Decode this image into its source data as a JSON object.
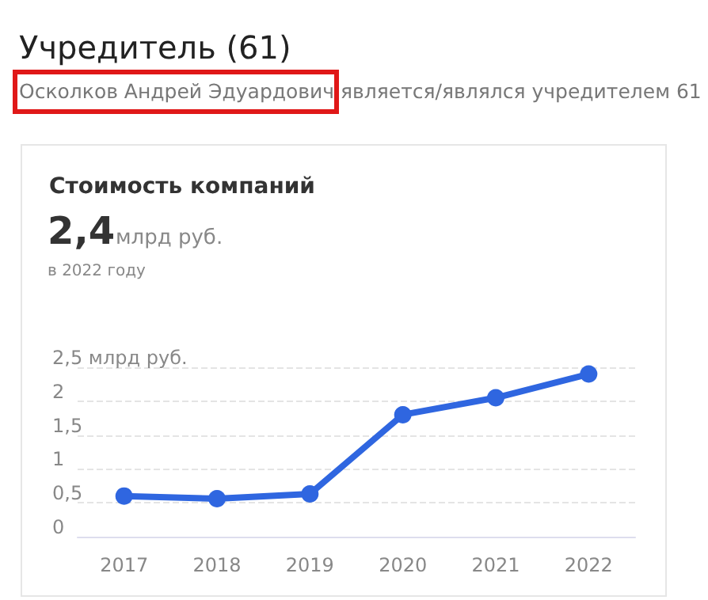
{
  "chart_data": {
    "type": "line",
    "title": "Стоимость компаний",
    "annotations": [
      "Учредитель (61)",
      "Осколков Андрей Эдуардович является/являлся учредителем 61",
      "2,4",
      "млрд руб.",
      "в 2022 году"
    ],
    "categories": [
      "2017",
      "2018",
      "2019",
      "2020",
      "2021",
      "2022"
    ],
    "series": [
      {
        "color": "#2f66e0",
        "values": [
          0.6,
          0.56,
          0.63,
          1.8,
          2.05,
          2.4
        ]
      }
    ],
    "ylim": [
      0,
      2.5
    ],
    "yticks": [
      {
        "value": 0,
        "label": "0"
      },
      {
        "value": 0.5,
        "label": "0,5"
      },
      {
        "value": 1,
        "label": "1"
      },
      {
        "value": 1.5,
        "label": "1,5"
      },
      {
        "value": 2,
        "label": "2"
      },
      {
        "value": 2.5,
        "label": "2,5 млрд руб."
      }
    ],
    "grid": "y",
    "marker": "circle",
    "line_style": "solid"
  }
}
